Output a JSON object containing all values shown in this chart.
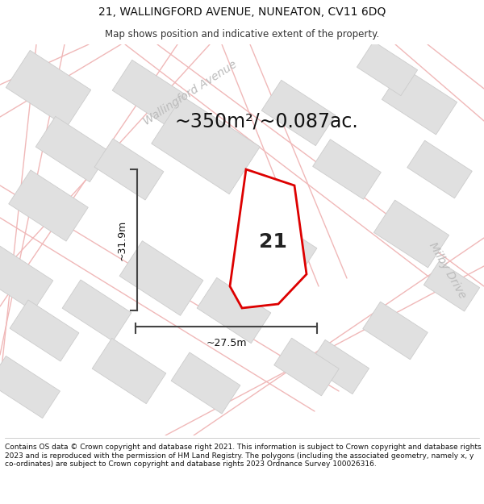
{
  "title": "21, WALLINGFORD AVENUE, NUNEATON, CV11 6DQ",
  "subtitle": "Map shows position and indicative extent of the property.",
  "area_text": "~350m²/~0.087ac.",
  "label_number": "21",
  "dim_width": "~27.5m",
  "dim_height": "~31.9m",
  "street_label_1": "Wallingford Avenue",
  "street_label_2": "Milby Drive",
  "footer": "Contains OS data © Crown copyright and database right 2021. This information is subject to Crown copyright and database rights 2023 and is reproduced with the permission of HM Land Registry. The polygons (including the associated geometry, namely x, y co-ordinates) are subject to Crown copyright and database rights 2023 Ordnance Survey 100026316.",
  "bg_color": "#f2f2f2",
  "building_fill": "#e0e0e0",
  "building_edge": "#cccccc",
  "road_line_color": "#f0b8b8",
  "property_outline_color": "#dd0000",
  "dim_line_color": "#444444",
  "street_text_color": "#bbbbbb",
  "title_fontsize": 10,
  "subtitle_fontsize": 8.5,
  "area_fontsize": 17,
  "label_fontsize": 18,
  "dim_fontsize": 9,
  "street_fontsize": 10,
  "footer_fontsize": 6.5
}
